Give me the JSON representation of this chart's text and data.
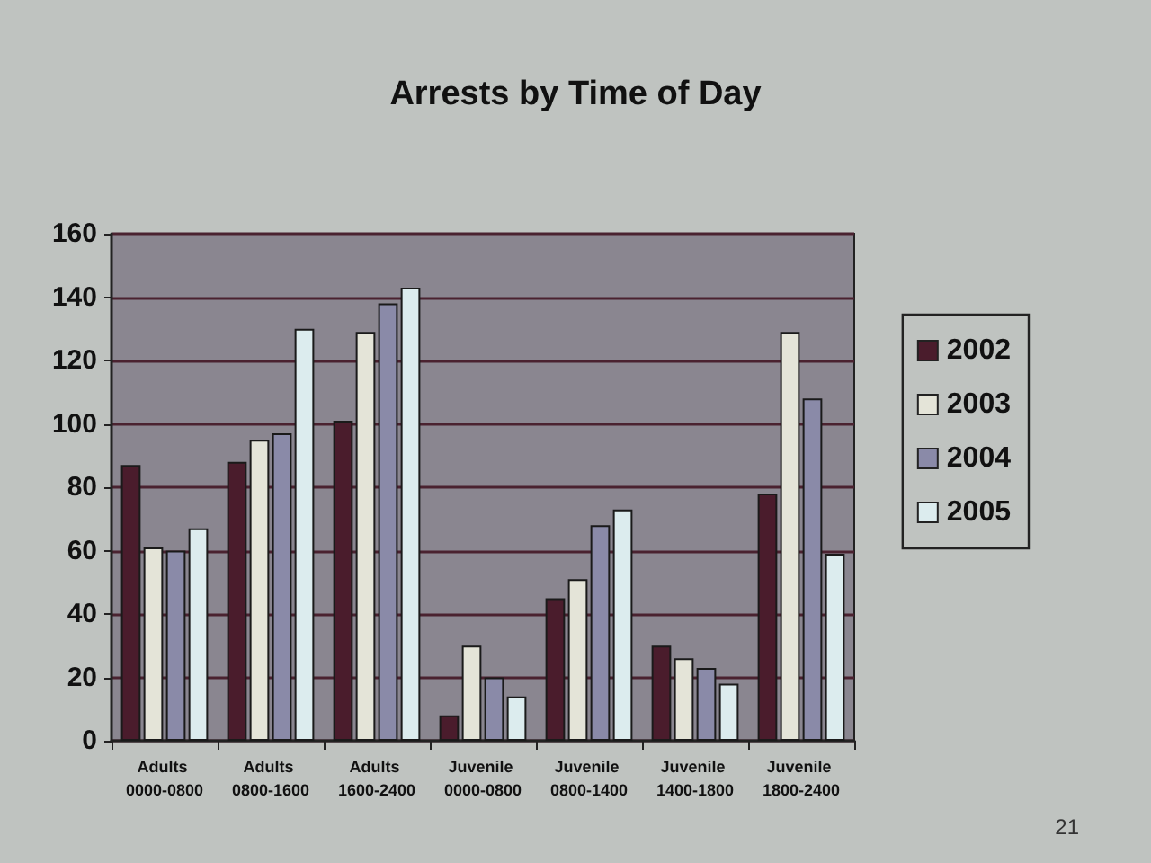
{
  "chart_data": {
    "type": "bar",
    "title": "Arrests by Time of Day",
    "categories": [
      "Adults 0000-0800",
      "Adults 0800-1600",
      "Adults 1600-2400",
      "Juvenile 0000-0800",
      "Juvenile 0800-1400",
      "Juvenile 1400-1800",
      "Juvenile 1800-2400"
    ],
    "series": [
      {
        "name": "2002",
        "color": "#4a1c2c",
        "values": [
          87,
          88,
          101,
          8,
          45,
          30,
          78
        ]
      },
      {
        "name": "2003",
        "color": "#e4e4d8",
        "values": [
          61,
          95,
          129,
          30,
          51,
          26,
          129
        ]
      },
      {
        "name": "2004",
        "color": "#8a8aa8",
        "values": [
          60,
          97,
          138,
          20,
          68,
          23,
          108
        ]
      },
      {
        "name": "2005",
        "color": "#dcecee",
        "values": [
          67,
          130,
          143,
          14,
          73,
          18,
          59
        ]
      }
    ],
    "ylim": [
      0,
      160
    ],
    "yticks": [
      0,
      20,
      40,
      60,
      80,
      100,
      120,
      140,
      160
    ],
    "grid": "y",
    "legend": "right",
    "annotations": [
      "21"
    ]
  }
}
